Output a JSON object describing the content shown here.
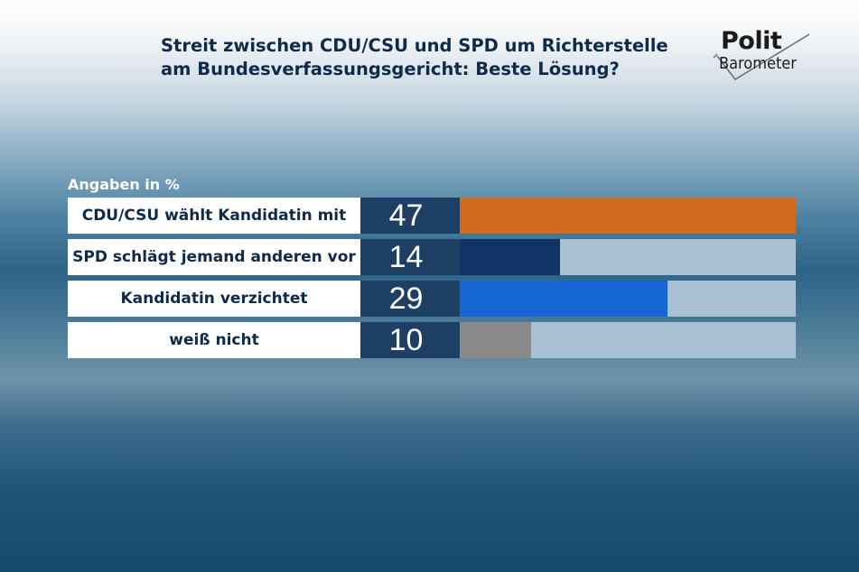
{
  "header": {
    "title_line1": "Streit zwischen CDU/CSU und SPD um Richterstelle",
    "title_line2": "am Bundesverfassungsgericht: Beste Lösung?",
    "logo_top": "Polit",
    "logo_bottom": "Barometer"
  },
  "chart_data": {
    "type": "bar",
    "orientation": "horizontal",
    "unit_label": "Angaben in %",
    "categories": [
      "CDU/CSU wählt Kandidatin mit",
      "SPD schlägt jemand anderen vor",
      "Kandidatin verzichtet",
      "weiß nicht"
    ],
    "values": [
      47,
      14,
      29,
      10
    ],
    "colors": [
      "#d06b20",
      "#0f3566",
      "#1667d4",
      "#8a8a8a"
    ],
    "xlim": [
      0,
      47
    ]
  }
}
